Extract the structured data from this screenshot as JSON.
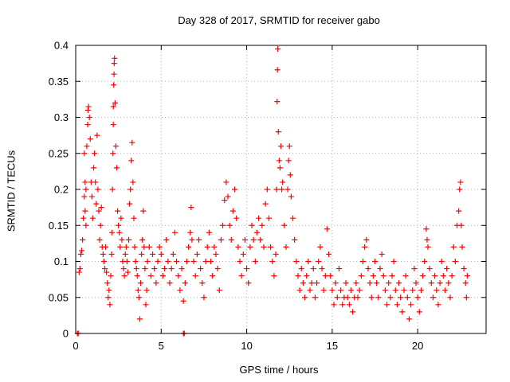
{
  "chart_data": {
    "type": "scatter",
    "title": "Day 328 of 2017, SRMTID for receiver gabo",
    "xlabel": "GPS time / hours",
    "ylabel": "SRMTID / TECUs",
    "xlim": [
      0,
      24
    ],
    "ylim": [
      0,
      0.4
    ],
    "xticks": [
      0,
      5,
      10,
      15,
      20
    ],
    "xtick_labels": [
      "0",
      "5",
      "10",
      "15",
      "20"
    ],
    "yticks": [
      0,
      0.05,
      0.1,
      0.15,
      0.2,
      0.25,
      0.3,
      0.35,
      0.4
    ],
    "ytick_labels": [
      "0",
      "0.05",
      "0.1",
      "0.15",
      "0.2",
      "0.25",
      "0.3",
      "0.35",
      "0.4"
    ],
    "grid": true,
    "marker": "+",
    "color": "#ff0000",
    "series": [
      {
        "name": "SRMTID",
        "points": [
          [
            0.1,
            0.0
          ],
          [
            0.15,
            0.0
          ],
          [
            6.3,
            0.0
          ],
          [
            6.35,
            0.0
          ],
          [
            0.2,
            0.085
          ],
          [
            0.25,
            0.09
          ],
          [
            0.3,
            0.11
          ],
          [
            0.35,
            0.115
          ],
          [
            0.4,
            0.13
          ],
          [
            0.45,
            0.16
          ],
          [
            0.5,
            0.19
          ],
          [
            0.55,
            0.21
          ],
          [
            0.6,
            0.2
          ],
          [
            0.5,
            0.25
          ],
          [
            0.55,
            0.17
          ],
          [
            0.6,
            0.15
          ],
          [
            0.65,
            0.26
          ],
          [
            0.7,
            0.29
          ],
          [
            0.72,
            0.31
          ],
          [
            0.75,
            0.315
          ],
          [
            0.8,
            0.3
          ],
          [
            0.85,
            0.27
          ],
          [
            0.9,
            0.21
          ],
          [
            0.95,
            0.19
          ],
          [
            1.0,
            0.16
          ],
          [
            1.05,
            0.23
          ],
          [
            1.1,
            0.25
          ],
          [
            1.15,
            0.21
          ],
          [
            1.2,
            0.18
          ],
          [
            1.25,
            0.275
          ],
          [
            1.3,
            0.2
          ],
          [
            1.35,
            0.17
          ],
          [
            1.4,
            0.13
          ],
          [
            1.45,
            0.15
          ],
          [
            1.5,
            0.175
          ],
          [
            1.55,
            0.12
          ],
          [
            1.6,
            0.11
          ],
          [
            1.65,
            0.1
          ],
          [
            1.7,
            0.09
          ],
          [
            1.75,
            0.12
          ],
          [
            1.8,
            0.085
          ],
          [
            1.85,
            0.07
          ],
          [
            1.9,
            0.05
          ],
          [
            1.95,
            0.06
          ],
          [
            2.0,
            0.04
          ],
          [
            2.05,
            0.08
          ],
          [
            2.1,
            0.11
          ],
          [
            2.12,
            0.14
          ],
          [
            2.15,
            0.2
          ],
          [
            2.18,
            0.25
          ],
          [
            2.2,
            0.29
          ],
          [
            2.2,
            0.315
          ],
          [
            2.22,
            0.345
          ],
          [
            2.24,
            0.36
          ],
          [
            2.25,
            0.375
          ],
          [
            2.27,
            0.382
          ],
          [
            2.3,
            0.32
          ],
          [
            2.35,
            0.26
          ],
          [
            2.4,
            0.23
          ],
          [
            2.45,
            0.17
          ],
          [
            2.5,
            0.15
          ],
          [
            2.55,
            0.14
          ],
          [
            2.6,
            0.12
          ],
          [
            2.65,
            0.16
          ],
          [
            2.7,
            0.13
          ],
          [
            2.75,
            0.1
          ],
          [
            2.8,
            0.09
          ],
          [
            2.85,
            0.08
          ],
          [
            2.9,
            0.11
          ],
          [
            2.95,
            0.12
          ],
          [
            3.0,
            0.1
          ],
          [
            3.05,
            0.085
          ],
          [
            3.1,
            0.13
          ],
          [
            3.15,
            0.18
          ],
          [
            3.2,
            0.2
          ],
          [
            3.25,
            0.24
          ],
          [
            3.3,
            0.265
          ],
          [
            3.35,
            0.21
          ],
          [
            3.4,
            0.16
          ],
          [
            3.45,
            0.12
          ],
          [
            3.5,
            0.1
          ],
          [
            3.55,
            0.09
          ],
          [
            3.6,
            0.08
          ],
          [
            3.65,
            0.06
          ],
          [
            3.7,
            0.05
          ],
          [
            3.75,
            0.02
          ],
          [
            3.8,
            0.07
          ],
          [
            3.85,
            0.11
          ],
          [
            3.9,
            0.13
          ],
          [
            3.95,
            0.17
          ],
          [
            4.0,
            0.12
          ],
          [
            4.05,
            0.09
          ],
          [
            4.1,
            0.04
          ],
          [
            4.15,
            0.06
          ],
          [
            4.2,
            0.1
          ],
          [
            4.3,
            0.12
          ],
          [
            4.4,
            0.08
          ],
          [
            4.5,
            0.11
          ],
          [
            4.6,
            0.09
          ],
          [
            4.7,
            0.07
          ],
          [
            4.8,
            0.1
          ],
          [
            4.9,
            0.12
          ],
          [
            5.0,
            0.11
          ],
          [
            5.1,
            0.08
          ],
          [
            5.2,
            0.09
          ],
          [
            5.3,
            0.13
          ],
          [
            5.4,
            0.1
          ],
          [
            5.5,
            0.07
          ],
          [
            5.6,
            0.09
          ],
          [
            5.7,
            0.11
          ],
          [
            5.8,
            0.14
          ],
          [
            5.9,
            0.1
          ],
          [
            6.0,
            0.08
          ],
          [
            6.1,
            0.06
          ],
          [
            6.2,
            0.09
          ],
          [
            6.3,
            0.045
          ],
          [
            6.4,
            0.07
          ],
          [
            6.5,
            0.1
          ],
          [
            6.6,
            0.12
          ],
          [
            6.7,
            0.14
          ],
          [
            6.75,
            0.175
          ],
          [
            6.8,
            0.13
          ],
          [
            6.9,
            0.1
          ],
          [
            7.0,
            0.08
          ],
          [
            7.1,
            0.11
          ],
          [
            7.2,
            0.13
          ],
          [
            7.3,
            0.09
          ],
          [
            7.4,
            0.07
          ],
          [
            7.5,
            0.05
          ],
          [
            7.6,
            0.1
          ],
          [
            7.7,
            0.12
          ],
          [
            7.8,
            0.14
          ],
          [
            7.9,
            0.1
          ],
          [
            8.0,
            0.08
          ],
          [
            8.1,
            0.12
          ],
          [
            8.2,
            0.11
          ],
          [
            8.3,
            0.09
          ],
          [
            8.4,
            0.06
          ],
          [
            8.5,
            0.13
          ],
          [
            8.6,
            0.15
          ],
          [
            8.7,
            0.185
          ],
          [
            8.8,
            0.21
          ],
          [
            8.9,
            0.19
          ],
          [
            9.0,
            0.15
          ],
          [
            9.1,
            0.13
          ],
          [
            9.2,
            0.17
          ],
          [
            9.3,
            0.2
          ],
          [
            9.4,
            0.16
          ],
          [
            9.5,
            0.12
          ],
          [
            9.6,
            0.1
          ],
          [
            9.7,
            0.08
          ],
          [
            9.8,
            0.11
          ],
          [
            9.9,
            0.13
          ],
          [
            10.0,
            0.09
          ],
          [
            10.1,
            0.07
          ],
          [
            10.2,
            0.12
          ],
          [
            10.3,
            0.15
          ],
          [
            10.4,
            0.13
          ],
          [
            10.5,
            0.1
          ],
          [
            10.6,
            0.14
          ],
          [
            10.7,
            0.16
          ],
          [
            10.8,
            0.13
          ],
          [
            10.9,
            0.15
          ],
          [
            11.0,
            0.12
          ],
          [
            11.1,
            0.18
          ],
          [
            11.2,
            0.2
          ],
          [
            11.3,
            0.16
          ],
          [
            11.4,
            0.12
          ],
          [
            11.5,
            0.1
          ],
          [
            11.6,
            0.08
          ],
          [
            11.7,
            0.11
          ],
          [
            11.75,
            0.2
          ],
          [
            11.78,
            0.322
          ],
          [
            11.8,
            0.366
          ],
          [
            11.82,
            0.395
          ],
          [
            11.85,
            0.28
          ],
          [
            11.9,
            0.24
          ],
          [
            11.95,
            0.23
          ],
          [
            12.0,
            0.26
          ],
          [
            12.05,
            0.2
          ],
          [
            12.1,
            0.21
          ],
          [
            12.2,
            0.15
          ],
          [
            12.3,
            0.12
          ],
          [
            12.4,
            0.2
          ],
          [
            12.45,
            0.24
          ],
          [
            12.5,
            0.26
          ],
          [
            12.55,
            0.22
          ],
          [
            12.6,
            0.19
          ],
          [
            12.7,
            0.16
          ],
          [
            12.8,
            0.13
          ],
          [
            12.9,
            0.1
          ],
          [
            13.0,
            0.08
          ],
          [
            13.1,
            0.06
          ],
          [
            13.2,
            0.09
          ],
          [
            13.3,
            0.07
          ],
          [
            13.4,
            0.05
          ],
          [
            13.5,
            0.08
          ],
          [
            13.6,
            0.1
          ],
          [
            13.7,
            0.06
          ],
          [
            13.8,
            0.07
          ],
          [
            13.9,
            0.09
          ],
          [
            14.0,
            0.05
          ],
          [
            14.1,
            0.07
          ],
          [
            14.2,
            0.1
          ],
          [
            14.3,
            0.12
          ],
          [
            14.4,
            0.09
          ],
          [
            14.5,
            0.06
          ],
          [
            14.6,
            0.08
          ],
          [
            14.7,
            0.145
          ],
          [
            14.8,
            0.11
          ],
          [
            14.9,
            0.08
          ],
          [
            15.0,
            0.06
          ],
          [
            15.1,
            0.04
          ],
          [
            15.2,
            0.07
          ],
          [
            15.3,
            0.05
          ],
          [
            15.4,
            0.09
          ],
          [
            15.5,
            0.06
          ],
          [
            15.6,
            0.04
          ],
          [
            15.7,
            0.05
          ],
          [
            15.8,
            0.07
          ],
          [
            15.9,
            0.05
          ],
          [
            16.0,
            0.04
          ],
          [
            16.1,
            0.06
          ],
          [
            16.2,
            0.03
          ],
          [
            16.3,
            0.05
          ],
          [
            16.4,
            0.07
          ],
          [
            16.5,
            0.05
          ],
          [
            16.6,
            0.06
          ],
          [
            16.7,
            0.08
          ],
          [
            16.8,
            0.1
          ],
          [
            16.9,
            0.12
          ],
          [
            17.0,
            0.13
          ],
          [
            17.1,
            0.09
          ],
          [
            17.2,
            0.07
          ],
          [
            17.3,
            0.05
          ],
          [
            17.4,
            0.08
          ],
          [
            17.5,
            0.1
          ],
          [
            17.6,
            0.07
          ],
          [
            17.7,
            0.05
          ],
          [
            17.8,
            0.09
          ],
          [
            17.9,
            0.11
          ],
          [
            18.0,
            0.08
          ],
          [
            18.1,
            0.06
          ],
          [
            18.2,
            0.04
          ],
          [
            18.3,
            0.07
          ],
          [
            18.4,
            0.05
          ],
          [
            18.5,
            0.08
          ],
          [
            18.6,
            0.1
          ],
          [
            18.7,
            0.06
          ],
          [
            18.8,
            0.04
          ],
          [
            18.9,
            0.07
          ],
          [
            19.0,
            0.05
          ],
          [
            19.1,
            0.03
          ],
          [
            19.2,
            0.06
          ],
          [
            19.3,
            0.08
          ],
          [
            19.4,
            0.05
          ],
          [
            19.5,
            0.02
          ],
          [
            19.6,
            0.04
          ],
          [
            19.7,
            0.06
          ],
          [
            19.8,
            0.09
          ],
          [
            19.9,
            0.07
          ],
          [
            20.0,
            0.05
          ],
          [
            20.1,
            0.03
          ],
          [
            20.2,
            0.06
          ],
          [
            20.3,
            0.08
          ],
          [
            20.4,
            0.1
          ],
          [
            20.5,
            0.145
          ],
          [
            20.55,
            0.13
          ],
          [
            20.6,
            0.12
          ],
          [
            20.7,
            0.09
          ],
          [
            20.8,
            0.07
          ],
          [
            20.9,
            0.05
          ],
          [
            21.0,
            0.08
          ],
          [
            21.1,
            0.06
          ],
          [
            21.2,
            0.04
          ],
          [
            21.3,
            0.07
          ],
          [
            21.4,
            0.1
          ],
          [
            21.5,
            0.08
          ],
          [
            21.6,
            0.06
          ],
          [
            21.7,
            0.09
          ],
          [
            21.8,
            0.07
          ],
          [
            21.9,
            0.05
          ],
          [
            22.0,
            0.08
          ],
          [
            22.1,
            0.12
          ],
          [
            22.2,
            0.1
          ],
          [
            22.3,
            0.15
          ],
          [
            22.4,
            0.17
          ],
          [
            22.45,
            0.2
          ],
          [
            22.5,
            0.21
          ],
          [
            22.55,
            0.15
          ],
          [
            22.6,
            0.12
          ],
          [
            22.7,
            0.09
          ],
          [
            22.8,
            0.07
          ],
          [
            22.85,
            0.05
          ],
          [
            22.9,
            0.08
          ]
        ]
      }
    ]
  }
}
